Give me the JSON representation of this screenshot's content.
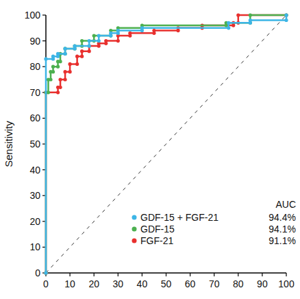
{
  "chart_data": {
    "type": "line",
    "y_label": "Sensitivity",
    "legend_title": "AUC",
    "legend": "bottom-right",
    "marker": "circle",
    "xlim": [
      0,
      100
    ],
    "ylim": [
      0,
      100
    ],
    "xticks": [
      0,
      10,
      20,
      30,
      40,
      50,
      60,
      70,
      80,
      90,
      100
    ],
    "yticks": [
      0,
      10,
      20,
      30,
      40,
      50,
      60,
      70,
      80,
      90,
      100
    ],
    "grid": false,
    "series": [
      {
        "name": "GDF-15 + FGF-21",
        "color": "#3db5e6",
        "auc_label": "94.4%",
        "x": [
          0,
          0,
          3,
          3,
          5,
          5,
          8,
          8,
          12,
          12,
          18,
          18,
          22,
          22,
          27,
          27,
          30,
          30,
          40,
          40,
          76,
          76,
          85,
          85,
          100,
          100
        ],
        "values": [
          0,
          83,
          83,
          84,
          84,
          85,
          85,
          87,
          87,
          88,
          88,
          90,
          90,
          92,
          92,
          93,
          93,
          94,
          94,
          95,
          95,
          97,
          97,
          98,
          98,
          100
        ]
      },
      {
        "name": "GDF-15",
        "color": "#4cb050",
        "auc_label": "94.1%",
        "x": [
          0,
          0,
          1,
          1,
          2,
          2,
          3,
          3,
          5,
          5,
          6,
          6,
          8,
          8,
          12,
          12,
          15,
          15,
          20,
          20,
          27,
          27,
          30,
          30,
          40,
          40,
          75,
          75,
          85,
          85,
          100
        ],
        "values": [
          0,
          70,
          70,
          75,
          75,
          78,
          78,
          80,
          80,
          82,
          82,
          85,
          85,
          87,
          87,
          88,
          88,
          90,
          90,
          92,
          92,
          94,
          94,
          95,
          95,
          96,
          96,
          97,
          97,
          100,
          100
        ]
      },
      {
        "name": "FGF-21",
        "color": "#e8302e",
        "auc_label": "91.1%",
        "x": [
          0,
          0,
          5,
          5,
          6,
          6,
          8,
          8,
          10,
          10,
          13,
          13,
          15,
          15,
          18,
          18,
          22,
          22,
          25,
          25,
          30,
          30,
          35,
          35,
          45,
          45,
          55,
          55,
          65,
          65,
          78,
          78,
          80,
          80,
          100
        ],
        "values": [
          0,
          70,
          70,
          72,
          72,
          75,
          75,
          78,
          78,
          81,
          81,
          84,
          84,
          86,
          86,
          88,
          88,
          89,
          89,
          90,
          90,
          92,
          92,
          93,
          93,
          94,
          94,
          95,
          95,
          96,
          96,
          97,
          97,
          100,
          100
        ]
      }
    ]
  }
}
